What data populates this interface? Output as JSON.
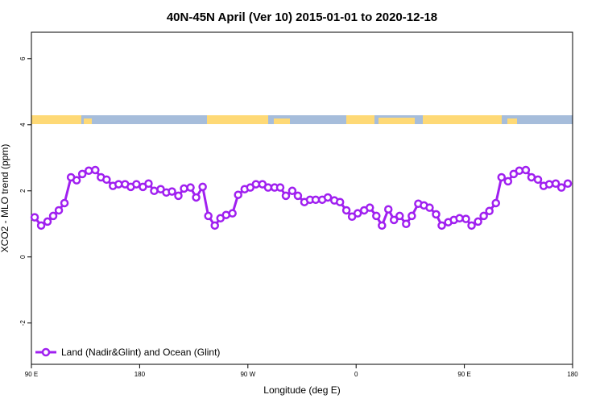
{
  "chart_data": {
    "type": "line",
    "title": "40N-45N April (Ver 10)   2015-01-01 to 2020-12-18",
    "xlabel": "Longitude (deg E)",
    "ylabel": "XCO2 - MLO trend (ppm)",
    "xlim": [
      90,
      540
    ],
    "ylim": [
      -3.25,
      6.8
    ],
    "xticks": [
      {
        "value": 90,
        "label": "90 E"
      },
      {
        "value": 180,
        "label": "180"
      },
      {
        "value": 270,
        "label": "90 W"
      },
      {
        "value": 360,
        "label": "0"
      },
      {
        "value": 450,
        "label": "90 E"
      },
      {
        "value": 540,
        "label": "180"
      }
    ],
    "yticks": [
      -2,
      0,
      2,
      4,
      6
    ],
    "legend": "bottom-left",
    "x": [
      92.7,
      98.1,
      103.4,
      108.1,
      112.8,
      117.5,
      122.9,
      127.6,
      132.3,
      137.7,
      143.1,
      147.8,
      152.5,
      157.8,
      162.5,
      167.9,
      172.6,
      177.3,
      182.7,
      187.4,
      192.1,
      197.5,
      202.2,
      206.9,
      212.2,
      216.9,
      222.3,
      227.0,
      232.4,
      237.1,
      242.5,
      247.2,
      251.9,
      257.2,
      261.9,
      267.3,
      272.0,
      276.7,
      282.1,
      286.8,
      292.2,
      296.9,
      301.6,
      306.9,
      311.6,
      317.0,
      321.7,
      326.4,
      331.8,
      336.5,
      341.9,
      346.6,
      351.9,
      356.6,
      361.3,
      366.7,
      371.4,
      376.8,
      381.5,
      386.8,
      391.5,
      396.2,
      401.6,
      406.3,
      411.7,
      416.4,
      421.1,
      426.5,
      431.2,
      436.6,
      441.3,
      446.0,
      451.3,
      456.0,
      461.4,
      466.1,
      470.8,
      476.2,
      480.9,
      486.3,
      491.0,
      495.7,
      501.1,
      505.8,
      511.2,
      515.9,
      520.6,
      526.0,
      530.7,
      536.0
    ],
    "series": [
      {
        "name": "Land (Nadir&Glint) and Ocean (Glint)",
        "color": "#a020f0",
        "values": [
          1.2,
          0.95,
          1.07,
          1.24,
          1.41,
          1.63,
          2.41,
          2.32,
          2.51,
          2.61,
          2.63,
          2.41,
          2.34,
          2.15,
          2.2,
          2.2,
          2.12,
          2.2,
          2.12,
          2.22,
          2.0,
          2.05,
          1.95,
          1.98,
          1.85,
          2.07,
          2.1,
          1.8,
          2.12,
          1.24,
          0.95,
          1.17,
          1.27,
          1.32,
          1.88,
          2.05,
          2.1,
          2.2,
          2.2,
          2.1,
          2.1,
          2.1,
          1.85,
          2.0,
          1.85,
          1.66,
          1.73,
          1.73,
          1.73,
          1.8,
          1.71,
          1.66,
          1.41,
          1.22,
          1.32,
          1.41,
          1.49,
          1.24,
          0.95,
          1.44,
          1.12,
          1.24,
          1.0,
          1.24,
          1.61,
          1.56,
          1.49,
          1.29,
          0.95,
          1.05,
          1.12,
          1.17,
          1.15,
          0.95,
          1.07,
          1.24,
          1.39,
          1.63,
          2.41,
          2.29,
          2.51,
          2.61,
          2.63,
          2.41,
          2.34,
          2.15,
          2.2,
          2.22,
          2.1,
          2.22
        ]
      }
    ]
  }
}
